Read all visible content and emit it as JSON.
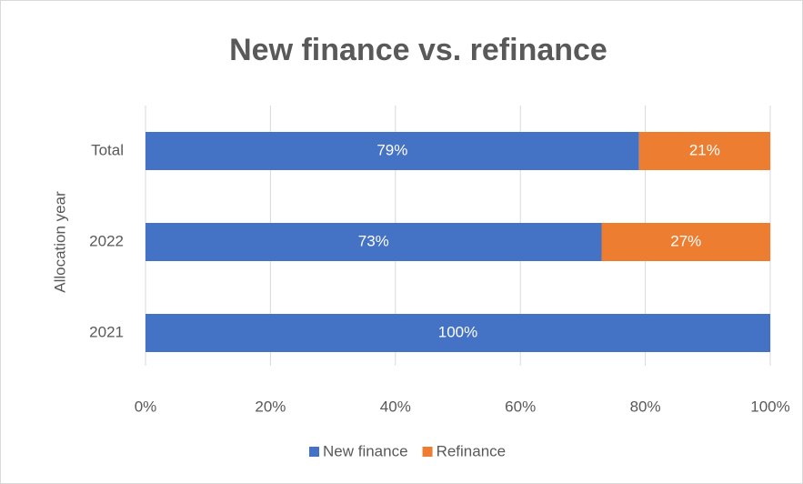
{
  "chart_data": {
    "type": "stacked_barh",
    "title": "New finance vs. refinance",
    "ylabel": "Allocation year",
    "categories": [
      "Total",
      "2022",
      "2021"
    ],
    "series": [
      {
        "name": "New finance",
        "color": "#4472c4",
        "values": [
          79,
          73,
          100
        ],
        "value_labels": [
          "79%",
          "73%",
          "100%"
        ]
      },
      {
        "name": "Refinance",
        "color": "#ed7d31",
        "values": [
          21,
          27,
          0
        ],
        "value_labels": [
          "21%",
          "27%",
          null
        ]
      }
    ],
    "xlim": [
      0,
      100
    ],
    "xticks": [
      {
        "value": 0,
        "label": "0%"
      },
      {
        "value": 20,
        "label": "20%"
      },
      {
        "value": 40,
        "label": "40%"
      },
      {
        "value": 60,
        "label": "60%"
      },
      {
        "value": 80,
        "label": "80%"
      },
      {
        "value": 100,
        "label": "100%"
      }
    ],
    "grid": true,
    "legend": "bottom"
  }
}
